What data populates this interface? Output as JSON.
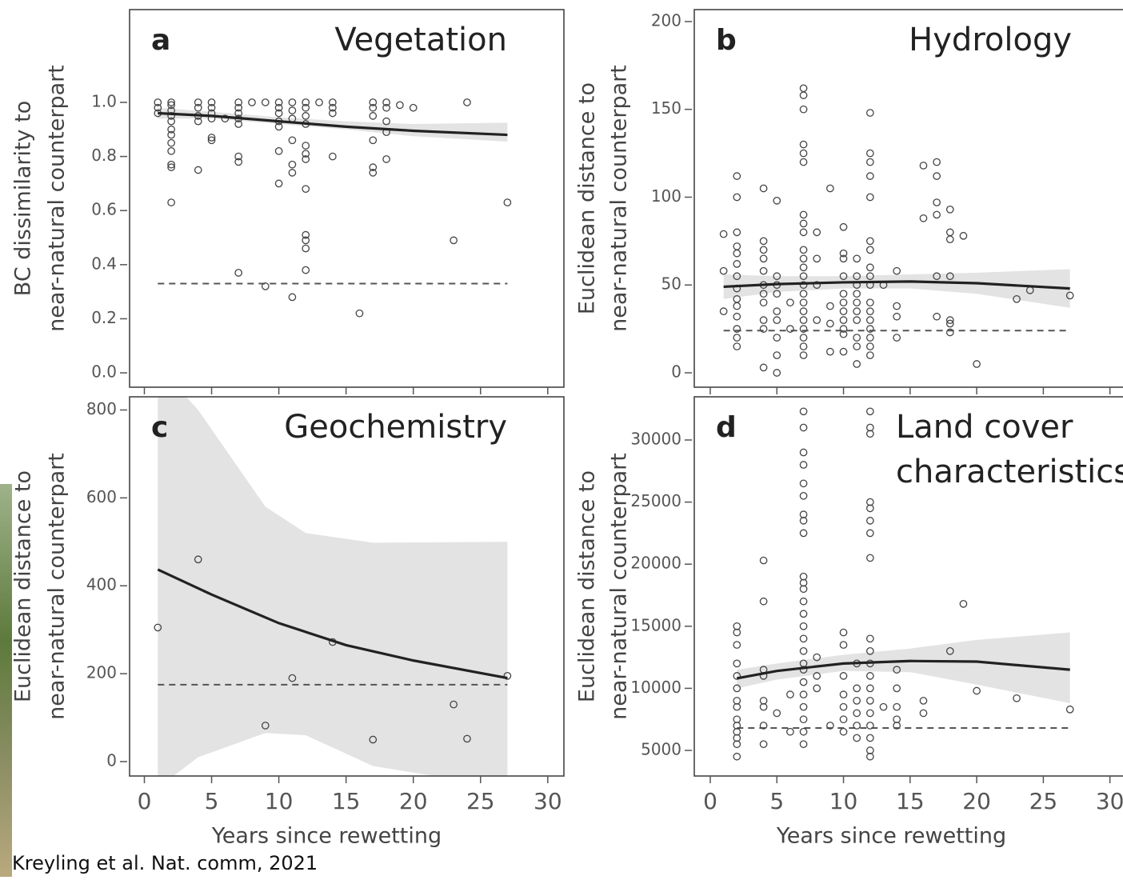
{
  "chart_data": [
    {
      "type": "scatter",
      "letter": "a",
      "title": "Vegetation",
      "ylabel": [
        "BC dissimilarity to",
        "near-natural counterpart"
      ],
      "x": [
        1,
        1,
        1,
        2,
        2,
        2,
        2,
        2,
        2,
        2,
        2,
        2,
        2,
        2,
        2,
        4,
        4,
        4,
        4,
        4,
        5,
        5,
        5,
        5,
        5,
        5,
        6,
        7,
        7,
        7,
        7,
        7,
        7,
        7,
        7,
        8,
        9,
        9,
        10,
        10,
        10,
        10,
        10,
        10,
        10,
        11,
        11,
        11,
        11,
        11,
        11,
        11,
        12,
        12,
        12,
        12,
        12,
        12,
        12,
        12,
        12,
        12,
        12,
        12,
        13,
        14,
        14,
        14,
        14,
        16,
        17,
        17,
        17,
        17,
        17,
        17,
        18,
        18,
        18,
        18,
        18,
        19,
        20,
        23,
        24,
        27
      ],
      "values": [
        1.0,
        0.98,
        0.96,
        1.0,
        0.99,
        0.97,
        0.95,
        0.93,
        0.9,
        0.88,
        0.85,
        0.82,
        0.77,
        0.76,
        0.63,
        1.0,
        0.98,
        0.95,
        0.93,
        0.75,
        1.0,
        0.98,
        0.96,
        0.94,
        0.87,
        0.86,
        0.94,
        1.0,
        0.98,
        0.96,
        0.94,
        0.92,
        0.8,
        0.78,
        0.37,
        1.0,
        1.0,
        0.32,
        1.0,
        0.98,
        0.96,
        0.93,
        0.91,
        0.82,
        0.7,
        1.0,
        0.97,
        0.94,
        0.86,
        0.77,
        0.74,
        0.28,
        1.0,
        0.98,
        0.95,
        0.92,
        0.84,
        0.81,
        0.79,
        0.68,
        0.51,
        0.49,
        0.46,
        0.38,
        1.0,
        1.0,
        0.98,
        0.96,
        0.8,
        0.22,
        1.0,
        0.98,
        0.95,
        0.86,
        0.76,
        0.74,
        1.0,
        0.98,
        0.93,
        0.89,
        0.79,
        0.99,
        0.98,
        0.49,
        1.0,
        0.63
      ],
      "fit": {
        "x": [
          1,
          5,
          10,
          15,
          20,
          27
        ],
        "values": [
          0.96,
          0.95,
          0.93,
          0.91,
          0.895,
          0.88
        ]
      },
      "ci": {
        "x": [
          1,
          5,
          10,
          15,
          20,
          27
        ],
        "lower": [
          0.94,
          0.94,
          0.92,
          0.9,
          0.875,
          0.855
        ],
        "upper": [
          0.98,
          0.965,
          0.945,
          0.93,
          0.92,
          0.925
        ]
      },
      "reference": {
        "x": [
          1,
          27
        ],
        "value": 0.33
      },
      "color": "#444444",
      "band_color": "#e3e3e3",
      "xlim": [
        -1.1,
        31.2
      ],
      "xticks": [
        0,
        5,
        10,
        15,
        20,
        25,
        30
      ],
      "xtick_labels": false,
      "ylim": [
        -0.053,
        1.343
      ],
      "yticks": [
        {
          "value": 0,
          "label": "0.0"
        },
        0.2,
        0.4,
        0.6,
        0.8,
        {
          "value": 1,
          "label": "1.0"
        }
      ]
    },
    {
      "type": "scatter",
      "letter": "b",
      "title": "Hydrology",
      "ylabel": [
        "Euclidean distance to",
        "near-natural counterpart"
      ],
      "x": [
        1,
        1,
        1,
        2,
        2,
        2,
        2,
        2,
        2,
        2,
        2,
        2,
        2,
        2,
        2,
        2,
        2,
        4,
        4,
        4,
        4,
        4,
        4,
        4,
        4,
        4,
        4,
        4,
        5,
        5,
        5,
        5,
        5,
        5,
        5,
        5,
        5,
        6,
        6,
        7,
        7,
        7,
        7,
        7,
        7,
        7,
        7,
        7,
        7,
        7,
        7,
        7,
        7,
        7,
        7,
        7,
        7,
        7,
        7,
        7,
        7,
        8,
        8,
        8,
        8,
        9,
        9,
        9,
        9,
        10,
        10,
        10,
        10,
        10,
        10,
        10,
        10,
        10,
        10,
        10,
        11,
        11,
        11,
        11,
        11,
        11,
        11,
        11,
        11,
        11,
        12,
        12,
        12,
        12,
        12,
        12,
        12,
        12,
        12,
        12,
        12,
        12,
        12,
        12,
        12,
        12,
        12,
        13,
        14,
        14,
        14,
        14,
        16,
        16,
        17,
        17,
        17,
        17,
        17,
        17,
        18,
        18,
        18,
        18,
        18,
        18,
        18,
        19,
        20,
        23,
        24,
        27
      ],
      "values": [
        79,
        58,
        35,
        112,
        100,
        80,
        72,
        68,
        62,
        55,
        48,
        42,
        38,
        32,
        25,
        20,
        15,
        105,
        75,
        70,
        65,
        58,
        50,
        45,
        40,
        30,
        25,
        3,
        98,
        55,
        50,
        45,
        35,
        30,
        20,
        10,
        0,
        40,
        25,
        162,
        158,
        150,
        130,
        125,
        120,
        90,
        85,
        80,
        70,
        65,
        60,
        55,
        50,
        45,
        40,
        35,
        30,
        25,
        20,
        15,
        10,
        80,
        65,
        50,
        30,
        105,
        38,
        28,
        12,
        83,
        68,
        65,
        55,
        45,
        40,
        35,
        30,
        25,
        22,
        12,
        65,
        55,
        50,
        45,
        40,
        35,
        30,
        20,
        15,
        5,
        148,
        125,
        120,
        112,
        100,
        75,
        70,
        60,
        55,
        50,
        40,
        35,
        30,
        25,
        20,
        15,
        10,
        50,
        58,
        38,
        32,
        20,
        118,
        88,
        120,
        112,
        97,
        90,
        55,
        32,
        93,
        80,
        76,
        55,
        30,
        28,
        23,
        78,
        5,
        42,
        47,
        44
      ],
      "fit": {
        "x": [
          1,
          5,
          10,
          15,
          20,
          27
        ],
        "values": [
          49,
          50.5,
          51.5,
          52,
          51,
          48
        ]
      },
      "ci": {
        "x": [
          1,
          5,
          10,
          15,
          20,
          27
        ],
        "lower": [
          42,
          46,
          48,
          48,
          45,
          37
        ],
        "upper": [
          56,
          55,
          55,
          56,
          57,
          59
        ]
      },
      "reference": {
        "x": [
          1,
          27
        ],
        "value": 24
      },
      "color": "#444444",
      "band_color": "#e3e3e3",
      "xlim": [
        -1.2,
        31.4
      ],
      "xticks": [
        0,
        5,
        10,
        15,
        20,
        25,
        30
      ],
      "xtick_labels": false,
      "ylim": [
        -8.2,
        206.8
      ],
      "yticks": [
        0,
        50,
        100,
        150,
        200
      ]
    },
    {
      "type": "scatter",
      "letter": "c",
      "title": "Geochemistry",
      "ylabel": [
        "Euclidean distance to",
        "near-natural counterpart"
      ],
      "xlabel": "Years since rewetting",
      "x": [
        1,
        4,
        9,
        11,
        14,
        17,
        23,
        24,
        27
      ],
      "values": [
        305,
        460,
        82,
        190,
        272,
        50,
        130,
        52,
        195
      ],
      "fit": {
        "x": [
          1,
          5,
          10,
          15,
          20,
          27
        ],
        "values": [
          437,
          380,
          315,
          265,
          230,
          190
        ]
      },
      "ci": {
        "x": [
          1,
          4,
          9,
          12,
          17,
          27
        ],
        "lower": [
          -60,
          10,
          65,
          60,
          -10,
          -60
        ],
        "upper": [
          900,
          800,
          580,
          520,
          498,
          500
        ]
      },
      "reference": {
        "x": [
          1,
          27
        ],
        "value": 175
      },
      "color": "#444444",
      "band_color": "#e3e3e3",
      "xlim": [
        -1.1,
        31.2
      ],
      "xticks": [
        0,
        5,
        10,
        15,
        20,
        25,
        30
      ],
      "xtick_labels": true,
      "ylim": [
        -32.8,
        830
      ],
      "yticks": [
        0,
        200,
        400,
        600,
        800
      ]
    },
    {
      "type": "scatter",
      "letter": "d",
      "title": [
        "Land cover",
        "characteristics"
      ],
      "ylabel": [
        "Euclidean distance to",
        "near-natural counterpart"
      ],
      "xlabel": "Years since rewetting",
      "x": [
        2,
        2,
        2,
        2,
        2,
        2,
        2,
        2,
        2,
        2,
        2,
        2,
        2,
        2,
        4,
        4,
        4,
        4,
        4,
        4,
        4,
        4,
        5,
        6,
        6,
        7,
        7,
        7,
        7,
        7,
        7,
        7,
        7,
        7,
        7,
        7,
        7,
        7,
        7,
        7,
        7,
        7,
        7,
        7,
        7,
        7,
        7,
        7,
        7,
        7,
        8,
        8,
        8,
        9,
        10,
        10,
        10,
        10,
        10,
        10,
        10,
        11,
        11,
        11,
        11,
        11,
        11,
        12,
        12,
        12,
        12,
        12,
        12,
        12,
        12,
        12,
        12,
        12,
        12,
        12,
        12,
        12,
        12,
        12,
        12,
        12,
        13,
        14,
        14,
        14,
        14,
        14,
        16,
        16,
        18,
        19,
        20,
        23,
        27
      ],
      "values": [
        15000,
        14500,
        13500,
        12000,
        11000,
        10000,
        9000,
        8500,
        7500,
        7000,
        6500,
        6000,
        5500,
        4500,
        20300,
        17000,
        11500,
        11000,
        9000,
        8500,
        7000,
        5500,
        8000,
        6500,
        9500,
        32300,
        31000,
        29000,
        28000,
        26500,
        25500,
        24000,
        23500,
        22500,
        19000,
        18500,
        18000,
        17000,
        16000,
        15000,
        14000,
        13000,
        12000,
        11500,
        10500,
        9500,
        8500,
        7500,
        6500,
        5500,
        12500,
        11000,
        10000,
        7000,
        14500,
        13500,
        11000,
        9500,
        8500,
        7500,
        6500,
        12000,
        10000,
        9000,
        8000,
        7000,
        6000,
        32300,
        31000,
        30500,
        25000,
        24500,
        23500,
        22500,
        20500,
        14000,
        13000,
        12000,
        11000,
        10000,
        9000,
        8000,
        7000,
        6000,
        5000,
        4500,
        8500,
        11500,
        10000,
        8500,
        7500,
        7000,
        9000,
        8000,
        13000,
        16800,
        9800,
        9200,
        8300
      ],
      "fit": {
        "x": [
          2,
          5,
          10,
          15,
          20,
          27
        ],
        "values": [
          10800,
          11400,
          12000,
          12200,
          12150,
          11500
        ]
      },
      "ci": {
        "x": [
          2,
          5,
          10,
          15,
          20,
          27
        ],
        "lower": [
          10000,
          10700,
          11400,
          11300,
          10300,
          8800
        ],
        "upper": [
          11500,
          12000,
          12700,
          13200,
          13900,
          14500
        ]
      },
      "reference": {
        "x": [
          2,
          27
        ],
        "value": 6800
      },
      "color": "#444444",
      "band_color": "#e3e3e3",
      "xlim": [
        -1.2,
        31.4
      ],
      "xticks": [
        0,
        5,
        10,
        15,
        20,
        25,
        30
      ],
      "xtick_labels": true,
      "ylim": [
        2938,
        33479
      ],
      "yticks": [
        5000,
        10000,
        15000,
        20000,
        25000,
        30000
      ]
    }
  ],
  "citation": "Kreyling et al. Nat. comm, 2021"
}
